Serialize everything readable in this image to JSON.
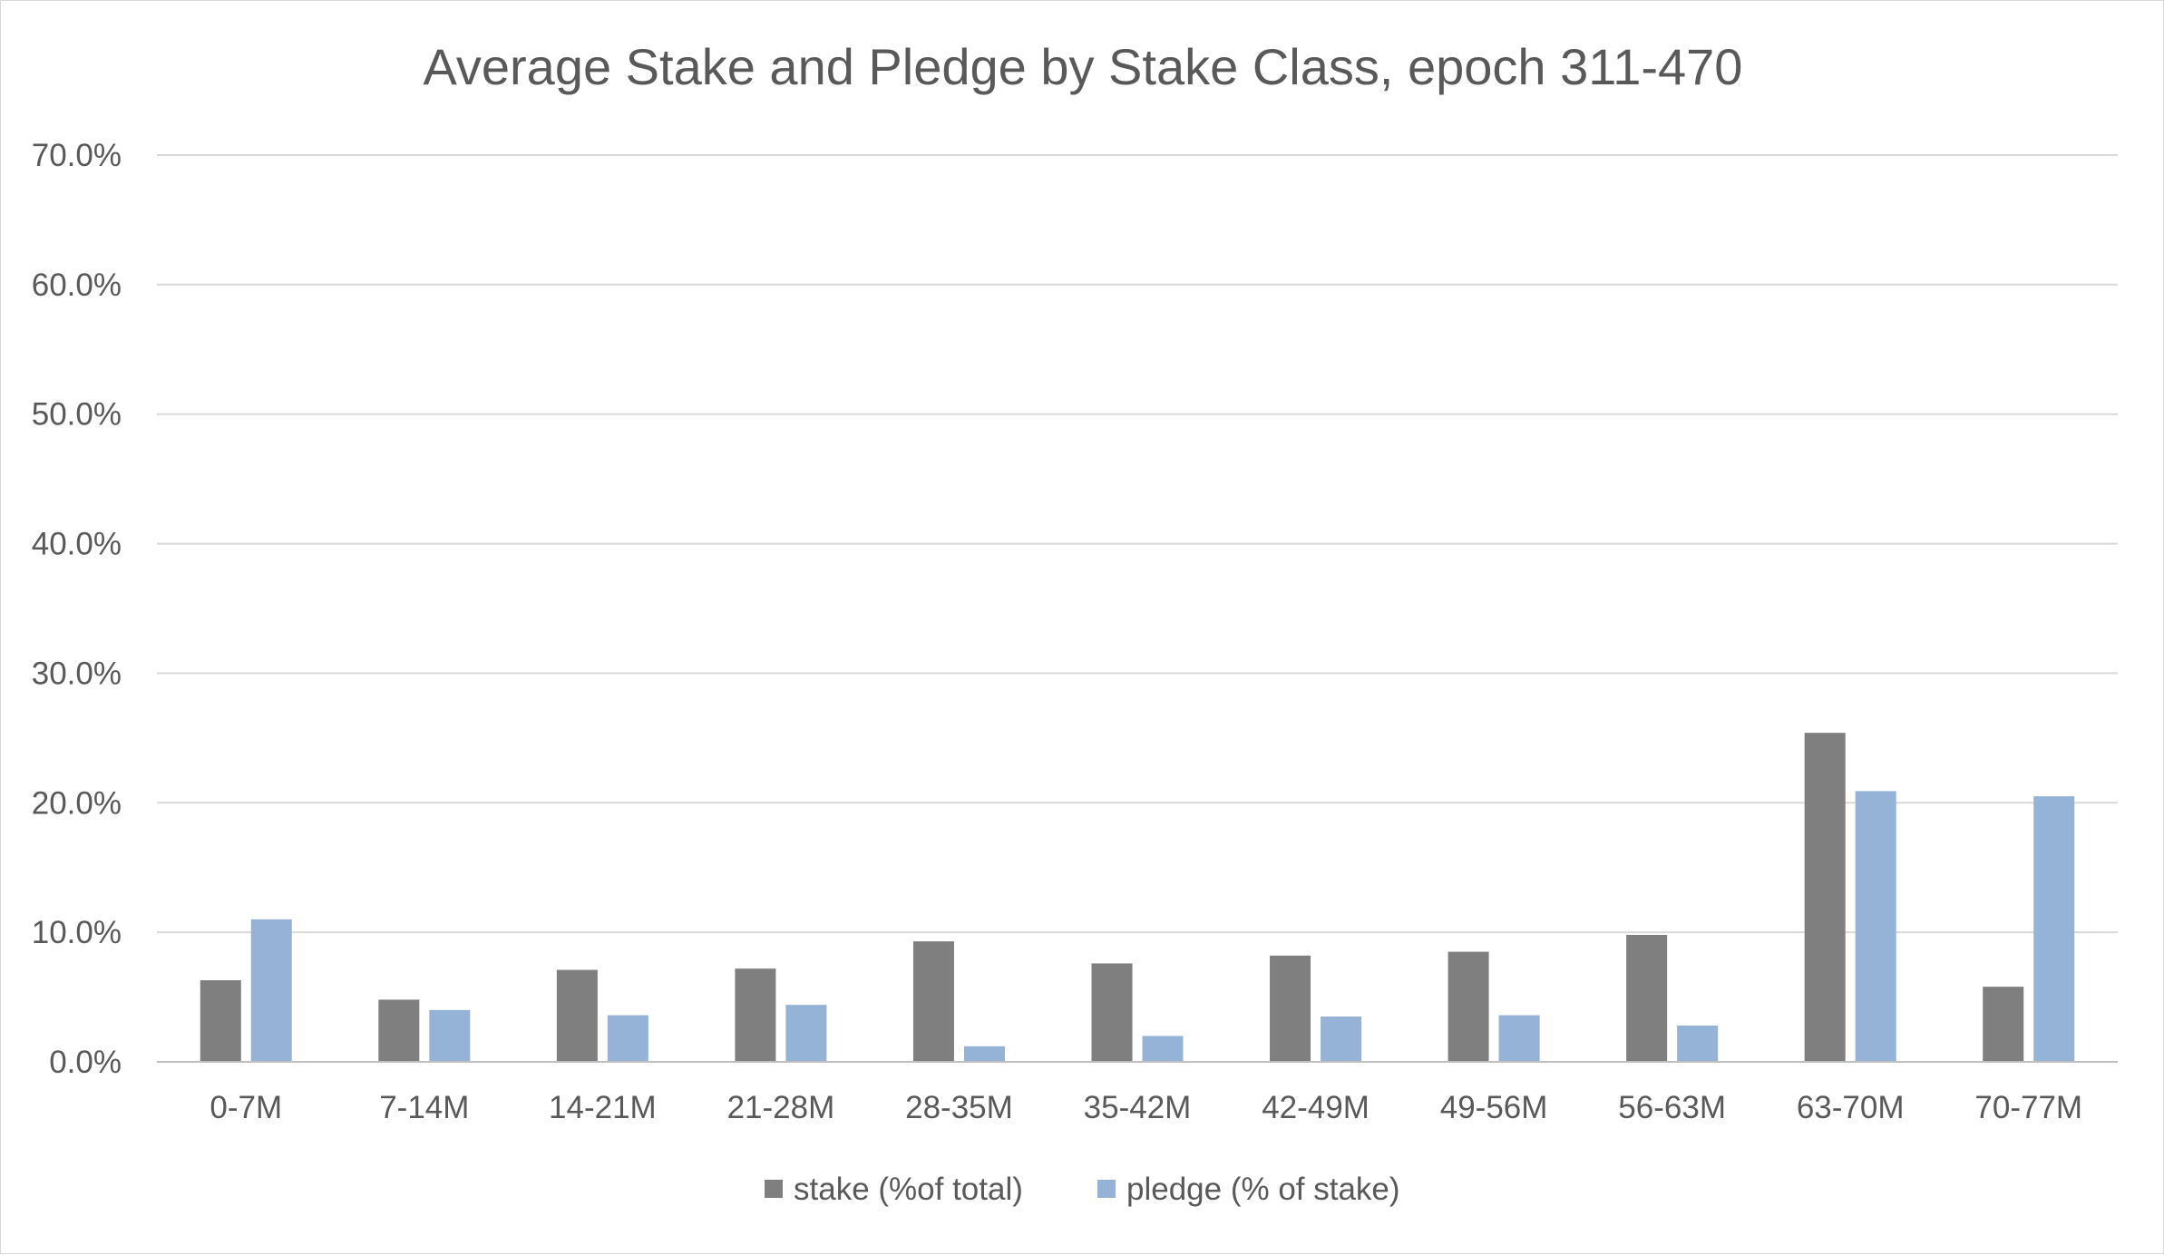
{
  "chart_data": {
    "type": "bar",
    "title": "Average Stake and Pledge by Stake Class, epoch 311-470",
    "xlabel": "",
    "ylabel": "",
    "categories": [
      "0-7M",
      "7-14M",
      "14-21M",
      "21-28M",
      "28-35M",
      "35-42M",
      "42-49M",
      "49-56M",
      "56-63M",
      "63-70M",
      "70-77M"
    ],
    "series": [
      {
        "name": "stake (%of total)",
        "color": "#7f7f7f",
        "values": [
          6.3,
          4.8,
          7.1,
          7.2,
          9.3,
          7.6,
          8.2,
          8.5,
          9.8,
          25.4,
          5.8
        ]
      },
      {
        "name": "pledge (% of stake)",
        "color": "#95b3d7",
        "values": [
          11.0,
          4.0,
          3.6,
          4.4,
          1.2,
          2.0,
          3.5,
          3.6,
          2.8,
          20.9,
          20.5
        ]
      }
    ],
    "ylim": [
      0,
      70
    ],
    "yticks": [
      0,
      10,
      20,
      30,
      40,
      50,
      60,
      70
    ],
    "ytick_labels": [
      "0.0%",
      "10.0%",
      "20.0%",
      "30.0%",
      "40.0%",
      "50.0%",
      "60.0%",
      "70.0%"
    ],
    "grid": true,
    "legend_position": "bottom",
    "gridline_color": "#d9d9d9",
    "axis_color": "#bfbfbf"
  }
}
